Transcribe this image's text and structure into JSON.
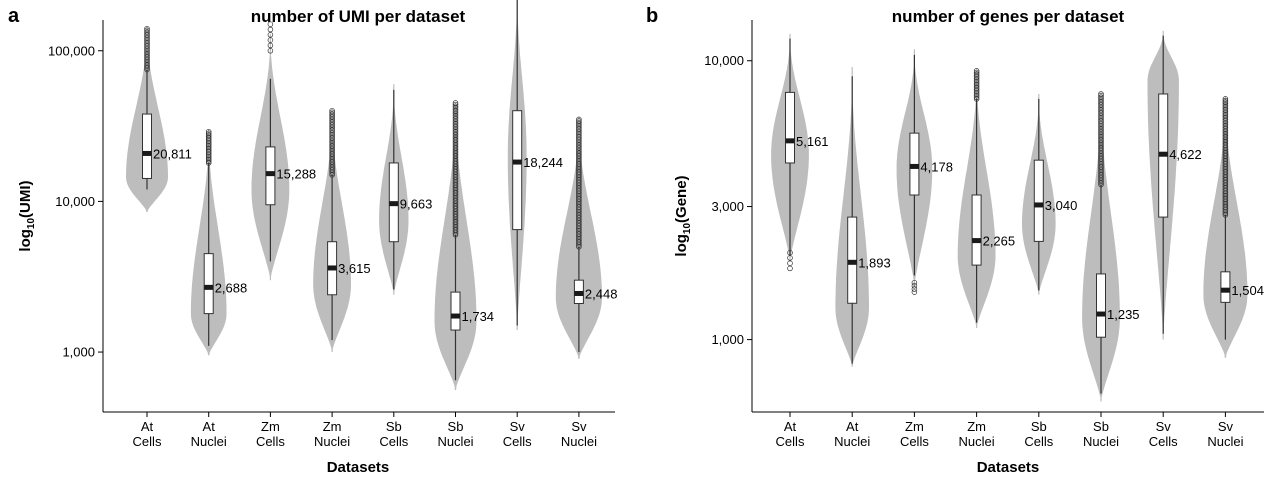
{
  "chart_data": [
    {
      "panel": "a",
      "type": "violin",
      "title": "number of UMI per dataset",
      "xlabel": "Datasets",
      "ylabel_main": "log",
      "ylabel_sub": "10",
      "ylabel_tail": "(UMI)",
      "yscale": "log10",
      "ylim": [
        400,
        160000
      ],
      "yticks": [
        1000,
        10000,
        100000
      ],
      "ytick_labels": [
        "1,000",
        "10,000",
        "100,000"
      ],
      "categories": [
        {
          "line1": "At",
          "line2": "Cells"
        },
        {
          "line1": "At",
          "line2": "Nuclei"
        },
        {
          "line1": "Zm",
          "line2": "Cells"
        },
        {
          "line1": "Zm",
          "line2": "Nuclei"
        },
        {
          "line1": "Sb",
          "line2": "Cells"
        },
        {
          "line1": "Sb",
          "line2": "Nuclei"
        },
        {
          "line1": "Sv",
          "line2": "Cells"
        },
        {
          "line1": "Sv",
          "line2": "Nuclei"
        }
      ],
      "series": [
        {
          "median": 20811,
          "median_label": "20,811",
          "q1": 14200,
          "q3": 38000,
          "whisker_low": 12000,
          "whisker_high": 75000,
          "violin_min": 8500,
          "violin_max": 145000,
          "outliers_from": 75000,
          "outliers_to": 140000,
          "dense": true,
          "mode": 14500,
          "width": 1.0
        },
        {
          "median": 2688,
          "median_label": "2,688",
          "q1": 1800,
          "q3": 4500,
          "whisker_low": 1100,
          "whisker_high": 18000,
          "violin_min": 950,
          "violin_max": 30000,
          "outliers_from": 18000,
          "outliers_to": 29000,
          "dense": true,
          "mode": 1800,
          "width": 0.85
        },
        {
          "median": 15288,
          "median_label": "15,288",
          "q1": 9500,
          "q3": 23000,
          "whisker_low": 4000,
          "whisker_high": 65000,
          "violin_min": 3000,
          "violin_max": 130000,
          "outliers_from": 100000,
          "outliers_to": 150000,
          "dense": false,
          "mode": 12000,
          "width": 0.9
        },
        {
          "median": 3615,
          "median_label": "3,615",
          "q1": 2400,
          "q3": 5400,
          "whisker_low": 1200,
          "whisker_high": 15000,
          "violin_min": 1000,
          "violin_max": 40000,
          "outliers_from": 15000,
          "outliers_to": 40000,
          "dense": true,
          "mode": 2800,
          "width": 0.9
        },
        {
          "median": 9663,
          "median_label": "9,663",
          "q1": 5400,
          "q3": 18000,
          "whisker_low": 2600,
          "whisker_high": 55000,
          "violin_min": 2400,
          "violin_max": 60000,
          "outliers_from": 0,
          "outliers_to": 0,
          "dense": false,
          "mode": 7500,
          "width": 0.7
        },
        {
          "median": 1734,
          "median_label": "1,734",
          "q1": 1400,
          "q3": 2500,
          "whisker_low": 650,
          "whisker_high": 6000,
          "violin_min": 560,
          "violin_max": 45000,
          "outliers_from": 6000,
          "outliers_to": 45000,
          "dense": true,
          "mode": 1600,
          "width": 1.0
        },
        {
          "median": 18244,
          "median_label": "18,244",
          "q1": 6500,
          "q3": 40000,
          "whisker_low": 1500,
          "whisker_high": 240000,
          "violin_min": 1400,
          "violin_max": 260000,
          "outliers_from": 0,
          "outliers_to": 0,
          "dense": false,
          "mode": 20000,
          "width": 0.45
        },
        {
          "median": 2448,
          "median_label": "2,448",
          "q1": 2100,
          "q3": 3000,
          "whisker_low": 1000,
          "whisker_high": 5000,
          "violin_min": 900,
          "violin_max": 36000,
          "outliers_from": 5000,
          "outliers_to": 35000,
          "dense": true,
          "mode": 2300,
          "width": 1.1
        }
      ]
    },
    {
      "panel": "b",
      "type": "violin",
      "title": "number of genes per dataset",
      "xlabel": "Datasets",
      "ylabel_main": "log",
      "ylabel_sub": "10",
      "ylabel_tail": "(Gene)",
      "yscale": "log10",
      "ylim": [
        550,
        14000
      ],
      "yticks": [
        1000,
        3000,
        10000
      ],
      "ytick_labels": [
        "1,000",
        "3,000",
        "10,000"
      ],
      "categories": [
        {
          "line1": "At",
          "line2": "Cells"
        },
        {
          "line1": "At",
          "line2": "Nuclei"
        },
        {
          "line1": "Zm",
          "line2": "Cells"
        },
        {
          "line1": "Zm",
          "line2": "Nuclei"
        },
        {
          "line1": "Sb",
          "line2": "Cells"
        },
        {
          "line1": "Sb",
          "line2": "Nuclei"
        },
        {
          "line1": "Sv",
          "line2": "Cells"
        },
        {
          "line1": "Sv",
          "line2": "Nuclei"
        }
      ],
      "series": [
        {
          "median": 5161,
          "median_label": "5,161",
          "q1": 4300,
          "q3": 7700,
          "whisker_low": 2000,
          "whisker_high": 12000,
          "violin_min": 1900,
          "violin_max": 12500,
          "outliers_from": 1800,
          "outliers_to": 2050,
          "dense": false,
          "mode": 4600,
          "width": 0.9
        },
        {
          "median": 1893,
          "median_label": "1,893",
          "q1": 1350,
          "q3": 2750,
          "whisker_low": 820,
          "whisker_high": 8800,
          "violin_min": 800,
          "violin_max": 9500,
          "outliers_from": 0,
          "outliers_to": 0,
          "dense": false,
          "mode": 1300,
          "width": 0.8
        },
        {
          "median": 4178,
          "median_label": "4,178",
          "q1": 3300,
          "q3": 5500,
          "whisker_low": 1700,
          "whisker_high": 10500,
          "violin_min": 1550,
          "violin_max": 11000,
          "outliers_from": 1480,
          "outliers_to": 1600,
          "dense": false,
          "mode": 4100,
          "width": 0.85
        },
        {
          "median": 2265,
          "median_label": "2,265",
          "q1": 1850,
          "q3": 3300,
          "whisker_low": 1150,
          "whisker_high": 7300,
          "violin_min": 1100,
          "violin_max": 9200,
          "outliers_from": 7300,
          "outliers_to": 9200,
          "dense": true,
          "mode": 2000,
          "width": 0.9
        },
        {
          "median": 3040,
          "median_label": "3,040",
          "q1": 2250,
          "q3": 4400,
          "whisker_low": 1500,
          "whisker_high": 7300,
          "violin_min": 1450,
          "violin_max": 7600,
          "outliers_from": 0,
          "outliers_to": 0,
          "dense": false,
          "mode": 2600,
          "width": 0.8
        },
        {
          "median": 1235,
          "median_label": "1,235",
          "q1": 1020,
          "q3": 1720,
          "whisker_low": 640,
          "whisker_high": 3600,
          "violin_min": 600,
          "violin_max": 7700,
          "outliers_from": 3600,
          "outliers_to": 7600,
          "dense": true,
          "mode": 1200,
          "width": 0.9
        },
        {
          "median": 4622,
          "median_label": "4,622",
          "q1": 2750,
          "q3": 7600,
          "whisker_low": 1050,
          "whisker_high": 12300,
          "violin_min": 1000,
          "violin_max": 12800,
          "outliers_from": 0,
          "outliers_to": 0,
          "dense": false,
          "mode": 8500,
          "width": 0.75
        },
        {
          "median": 1504,
          "median_label": "1,504",
          "q1": 1360,
          "q3": 1750,
          "whisker_low": 1000,
          "whisker_high": 2800,
          "violin_min": 860,
          "violin_max": 7400,
          "outliers_from": 2800,
          "outliers_to": 7300,
          "dense": true,
          "mode": 1450,
          "width": 1.05
        }
      ]
    }
  ]
}
